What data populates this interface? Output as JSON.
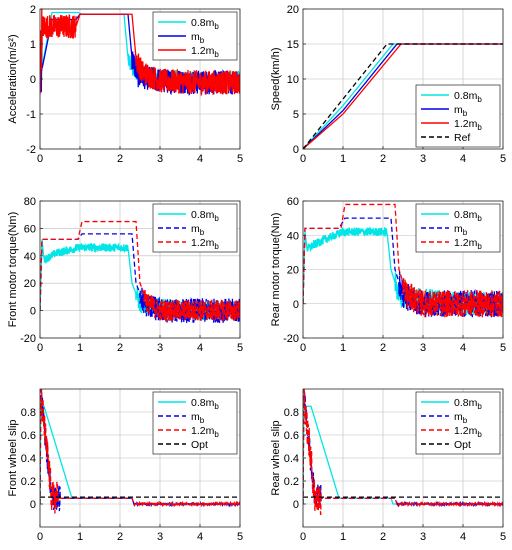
{
  "chart_data": [
    {
      "type": "line",
      "ylabel": "Acceleration(m/s²)",
      "xlim": [
        0,
        5
      ],
      "ylim": [
        -2,
        2
      ],
      "xticks": [
        "0",
        "1",
        "2",
        "3",
        "4",
        "5"
      ],
      "yticks": [
        "-2",
        "-1",
        "0",
        "1",
        "2"
      ],
      "grid": true,
      "legend_position": "top-right",
      "series": [
        {
          "name": "0.8m_b",
          "legend": "0.8m",
          "sub": "b",
          "color": "#00e5e5",
          "dash": "solid",
          "x": [
            0,
            0.3,
            0.7,
            0.95,
            1.05,
            2.1,
            2.2,
            2.35,
            3,
            4,
            5
          ],
          "y": [
            0,
            1.9,
            1.9,
            1.9,
            1.85,
            1.85,
            0.6,
            0.2,
            0.05,
            -0.05,
            0
          ],
          "noise": [
            {
              "from": 0,
              "to": 0.05,
              "amp": 0.9
            },
            {
              "from": 2.2,
              "to": 5,
              "amp": 0.25
            }
          ]
        },
        {
          "name": "m_b",
          "legend": "m",
          "sub": "b",
          "color": "#0000e6",
          "dash": "solid",
          "x": [
            0,
            0.3,
            0.9,
            1,
            2.2,
            2.3,
            2.45,
            3,
            4,
            5
          ],
          "y": [
            0,
            1.7,
            1.7,
            1.85,
            1.85,
            0.6,
            0.1,
            -0.05,
            -0.1,
            -0.1
          ],
          "noise": [
            {
              "from": 0,
              "to": 0.05,
              "amp": 0.9
            },
            {
              "from": 2.3,
              "to": 5,
              "amp": 0.35
            }
          ]
        },
        {
          "name": "1.2m_b",
          "legend": "1.2m",
          "sub": "b",
          "color": "#ff0000",
          "dash": "solid",
          "x": [
            0,
            0.05,
            0.9,
            1,
            2.3,
            2.4,
            2.55,
            3,
            4,
            5
          ],
          "y": [
            0,
            1.5,
            1.5,
            1.85,
            1.85,
            0.6,
            0.2,
            -0.05,
            -0.1,
            -0.1
          ],
          "noise": [
            {
              "from": 0,
              "to": 0.05,
              "amp": 0.9
            },
            {
              "from": 0.05,
              "to": 0.9,
              "amp": 0.35
            },
            {
              "from": 2.4,
              "to": 5,
              "amp": 0.35
            }
          ]
        }
      ]
    },
    {
      "type": "line",
      "ylabel": "Speed(km/h)",
      "xlim": [
        0,
        5
      ],
      "ylim": [
        0,
        20
      ],
      "xticks": [
        "0",
        "1",
        "2",
        "3",
        "4",
        "5"
      ],
      "yticks": [
        "0",
        "5",
        "10",
        "15",
        "20"
      ],
      "grid": true,
      "legend_position": "bottom-right",
      "series": [
        {
          "name": "0.8m_b",
          "legend": "0.8m",
          "sub": "b",
          "color": "#00e5e5",
          "dash": "solid",
          "x": [
            0,
            1,
            2.25,
            5
          ],
          "y": [
            0,
            6.2,
            15,
            15
          ]
        },
        {
          "name": "m_b",
          "legend": "m",
          "sub": "b",
          "color": "#0000e6",
          "dash": "solid",
          "x": [
            0,
            1,
            2.35,
            5
          ],
          "y": [
            0,
            5.5,
            15,
            15
          ]
        },
        {
          "name": "1.2m_b",
          "legend": "1.2m",
          "sub": "b",
          "color": "#ff0000",
          "dash": "solid",
          "x": [
            0,
            1,
            2.45,
            5
          ],
          "y": [
            0,
            5,
            15,
            15
          ]
        },
        {
          "name": "Ref",
          "legend": "Ref",
          "sub": "",
          "color": "#000000",
          "dash": "dashed",
          "x": [
            0,
            2.1,
            5
          ],
          "y": [
            0,
            15,
            15
          ]
        }
      ]
    },
    {
      "type": "line",
      "ylabel": "Front motor torque(Nm)",
      "xlim": [
        0,
        5
      ],
      "ylim": [
        -20,
        80
      ],
      "xticks": [
        "0",
        "1",
        "2",
        "3",
        "4",
        "5"
      ],
      "yticks": [
        "-20",
        "0",
        "20",
        "40",
        "60",
        "80"
      ],
      "grid": true,
      "legend_position": "top-right",
      "series": [
        {
          "name": "0.8m_b",
          "legend": "0.8m",
          "sub": "b",
          "color": "#00e5e5",
          "dash": "solid",
          "x": [
            0,
            0.05,
            0.1,
            0.4,
            1,
            2.2,
            2.3,
            2.5,
            3,
            4,
            5
          ],
          "y": [
            0,
            52,
            37,
            42,
            46,
            46,
            20,
            5,
            2,
            0,
            0
          ],
          "noise": [
            {
              "from": 0.1,
              "to": 2.2,
              "amp": 3
            },
            {
              "from": 2.4,
              "to": 5,
              "amp": 7
            }
          ]
        },
        {
          "name": "m_b",
          "legend": "m",
          "sub": "b",
          "color": "#0000e6",
          "dash": "dashed",
          "x": [
            0,
            0.05,
            0.15,
            0.95,
            1.05,
            2.3,
            2.4,
            2.6,
            3,
            4,
            5
          ],
          "y": [
            0,
            52,
            52,
            52,
            56,
            56,
            20,
            5,
            0,
            0,
            0
          ],
          "noise": [
            {
              "from": 2.5,
              "to": 5,
              "amp": 9
            }
          ]
        },
        {
          "name": "1.2m_b",
          "legend": "1.2m",
          "sub": "b",
          "color": "#ff0000",
          "dash": "dashed",
          "x": [
            0,
            0.05,
            0.15,
            0.95,
            1.05,
            2.4,
            2.5,
            2.7,
            3,
            4,
            5
          ],
          "y": [
            0,
            52,
            52,
            52,
            65,
            65,
            20,
            5,
            0,
            0,
            0
          ],
          "noise": [
            {
              "from": 2.6,
              "to": 5,
              "amp": 8
            }
          ]
        }
      ]
    },
    {
      "type": "line",
      "ylabel": "Rear motor torque(Nm)",
      "xlim": [
        0,
        5
      ],
      "ylim": [
        -20,
        60
      ],
      "xticks": [
        "0",
        "1",
        "2",
        "3",
        "4",
        "5"
      ],
      "yticks": [
        "-20",
        "0",
        "20",
        "40",
        "60"
      ],
      "grid": true,
      "legend_position": "top-right",
      "series": [
        {
          "name": "0.8m_b",
          "legend": "0.8m",
          "sub": "b",
          "color": "#00e5e5",
          "dash": "solid",
          "x": [
            0,
            0.05,
            0.1,
            0.4,
            1,
            2.1,
            2.2,
            2.4,
            3,
            4,
            5
          ],
          "y": [
            0,
            42,
            32,
            36,
            42,
            42,
            20,
            5,
            2,
            0,
            0
          ],
          "noise": [
            {
              "from": 0.1,
              "to": 2.1,
              "amp": 2.5
            },
            {
              "from": 2.3,
              "to": 5,
              "amp": 7
            }
          ]
        },
        {
          "name": "m_b",
          "legend": "m",
          "sub": "b",
          "color": "#0000e6",
          "dash": "dashed",
          "x": [
            0,
            0.05,
            0.9,
            1.05,
            2.2,
            2.3,
            2.5,
            3,
            4,
            5
          ],
          "y": [
            0,
            44,
            44,
            50,
            50,
            20,
            5,
            0,
            0,
            0
          ],
          "noise": [
            {
              "from": 2.4,
              "to": 5,
              "amp": 8
            }
          ]
        },
        {
          "name": "1.2m_b",
          "legend": "1.2m",
          "sub": "b",
          "color": "#ff0000",
          "dash": "dashed",
          "x": [
            0,
            0.05,
            0.95,
            1.05,
            2.3,
            2.4,
            2.6,
            3,
            4,
            5
          ],
          "y": [
            0,
            44,
            44,
            58,
            58,
            20,
            5,
            0,
            0,
            0
          ],
          "noise": [
            {
              "from": 2.5,
              "to": 5,
              "amp": 8
            }
          ]
        }
      ]
    },
    {
      "type": "line",
      "ylabel": "Front wheel slip",
      "xlim": [
        0,
        5
      ],
      "ylim": [
        -0.2,
        1
      ],
      "xticks": [
        "0",
        "1",
        "2",
        "3",
        "4",
        "5"
      ],
      "yticks": [
        "0",
        "0.2",
        "0.4",
        "0.6",
        "0.8"
      ],
      "grid": true,
      "legend_position": "top-right",
      "series": [
        {
          "name": "0.8m_b",
          "legend": "0.8m",
          "sub": "b",
          "color": "#00e5e5",
          "dash": "solid",
          "x": [
            0,
            0.02,
            0.1,
            0.8,
            1,
            2,
            2.3,
            2.35,
            3,
            4,
            5
          ],
          "y": [
            0,
            0.9,
            0.85,
            0.05,
            0.05,
            0.05,
            0.05,
            0,
            0,
            0,
            0
          ]
        },
        {
          "name": "m_b",
          "legend": "m",
          "sub": "b",
          "color": "#0000e6",
          "dash": "dashed",
          "x": [
            0,
            0.02,
            0.3,
            0.6,
            0.9,
            1,
            2,
            2.3,
            2.35,
            3,
            4,
            5
          ],
          "y": [
            0,
            0.95,
            0.05,
            0.05,
            0.05,
            0.05,
            0.05,
            0.05,
            0,
            0,
            0,
            0
          ],
          "noise": [
            {
              "from": 0.02,
              "to": 0.5,
              "amp": 0.12
            },
            {
              "from": 2.35,
              "to": 5,
              "amp": 0.01
            }
          ]
        },
        {
          "name": "1.2m_b",
          "legend": "1.2m",
          "sub": "b",
          "color": "#ff0000",
          "dash": "dashed",
          "x": [
            0,
            0.02,
            0.3,
            0.6,
            1,
            2,
            2.3,
            2.35,
            3,
            4,
            5
          ],
          "y": [
            0,
            0.95,
            0.05,
            0.05,
            0.05,
            0.05,
            0.05,
            0,
            0,
            0,
            0
          ],
          "noise": [
            {
              "from": 0.02,
              "to": 0.45,
              "amp": 0.15
            },
            {
              "from": 2.35,
              "to": 5,
              "amp": 0.01
            }
          ]
        },
        {
          "name": "Opt",
          "legend": "Opt",
          "sub": "",
          "color": "#000000",
          "dash": "dashed",
          "x": [
            0,
            5
          ],
          "y": [
            0.06,
            0.06
          ]
        }
      ]
    },
    {
      "type": "line",
      "ylabel": "Rear wheel slip",
      "xlim": [
        0,
        5
      ],
      "ylim": [
        -0.2,
        1
      ],
      "xticks": [
        "0",
        "1",
        "2",
        "3",
        "4",
        "5"
      ],
      "yticks": [
        "0",
        "0.2",
        "0.4",
        "0.6",
        "0.8"
      ],
      "grid": true,
      "legend_position": "top-right",
      "series": [
        {
          "name": "0.8m_b",
          "legend": "0.8m",
          "sub": "b",
          "color": "#00e5e5",
          "dash": "solid",
          "x": [
            0,
            0.02,
            0.2,
            0.9,
            1,
            2,
            2.2,
            2.25,
            3,
            4,
            5
          ],
          "y": [
            0,
            0.85,
            0.85,
            0.05,
            0.05,
            0.05,
            0.05,
            0,
            0,
            0,
            0
          ]
        },
        {
          "name": "m_b",
          "legend": "m",
          "sub": "b",
          "color": "#0000e6",
          "dash": "dashed",
          "x": [
            0,
            0.02,
            0.3,
            0.6,
            1,
            2,
            2.3,
            2.35,
            3,
            4,
            5
          ],
          "y": [
            0,
            0.95,
            0.05,
            0.05,
            0.05,
            0.05,
            0.05,
            0,
            0,
            0,
            0
          ],
          "noise": [
            {
              "from": 0.02,
              "to": 0.45,
              "amp": 0.12
            },
            {
              "from": 2.35,
              "to": 5,
              "amp": 0.01
            }
          ]
        },
        {
          "name": "1.2m_b",
          "legend": "1.2m",
          "sub": "b",
          "color": "#ff0000",
          "dash": "dashed",
          "x": [
            0,
            0.02,
            0.3,
            0.6,
            1,
            2,
            2.3,
            2.35,
            3,
            4,
            5
          ],
          "y": [
            0,
            0.95,
            0.05,
            0.05,
            0.05,
            0.05,
            0.05,
            0,
            0,
            0,
            0
          ],
          "noise": [
            {
              "from": 0.02,
              "to": 0.45,
              "amp": 0.15
            },
            {
              "from": 2.35,
              "to": 5,
              "amp": 0.01
            }
          ]
        },
        {
          "name": "Opt",
          "legend": "Opt",
          "sub": "",
          "color": "#000000",
          "dash": "dashed",
          "x": [
            0,
            5
          ],
          "y": [
            0.06,
            0.06
          ]
        }
      ]
    }
  ]
}
